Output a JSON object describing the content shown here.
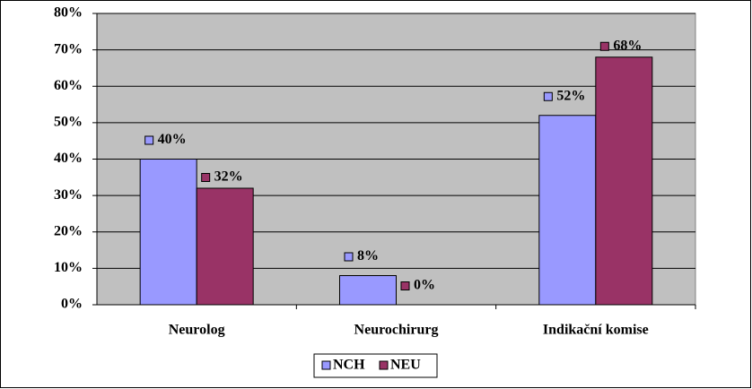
{
  "chart_data": {
    "type": "bar",
    "categories": [
      "Neurolog",
      "Neurochirurg",
      "Indikační komise"
    ],
    "series": [
      {
        "name": "NCH",
        "color": "#9999ff",
        "values": [
          40,
          8,
          52
        ],
        "value_labels": [
          "40%",
          "8%",
          "52%"
        ]
      },
      {
        "name": "NEU",
        "color": "#993366",
        "values": [
          32,
          0,
          68
        ],
        "value_labels": [
          "32%",
          "0%",
          "68%"
        ]
      }
    ],
    "ylim": [
      0,
      80
    ],
    "yticks": [
      {
        "value": 0,
        "label": "0%"
      },
      {
        "value": 10,
        "label": "10%"
      },
      {
        "value": 20,
        "label": "20%"
      },
      {
        "value": 30,
        "label": "30%"
      },
      {
        "value": 40,
        "label": "40%"
      },
      {
        "value": 50,
        "label": "50%"
      },
      {
        "value": 60,
        "label": "60%"
      },
      {
        "value": 70,
        "label": "70%"
      },
      {
        "value": 80,
        "label": "80%"
      }
    ],
    "grid": true,
    "legend": "bottom"
  }
}
